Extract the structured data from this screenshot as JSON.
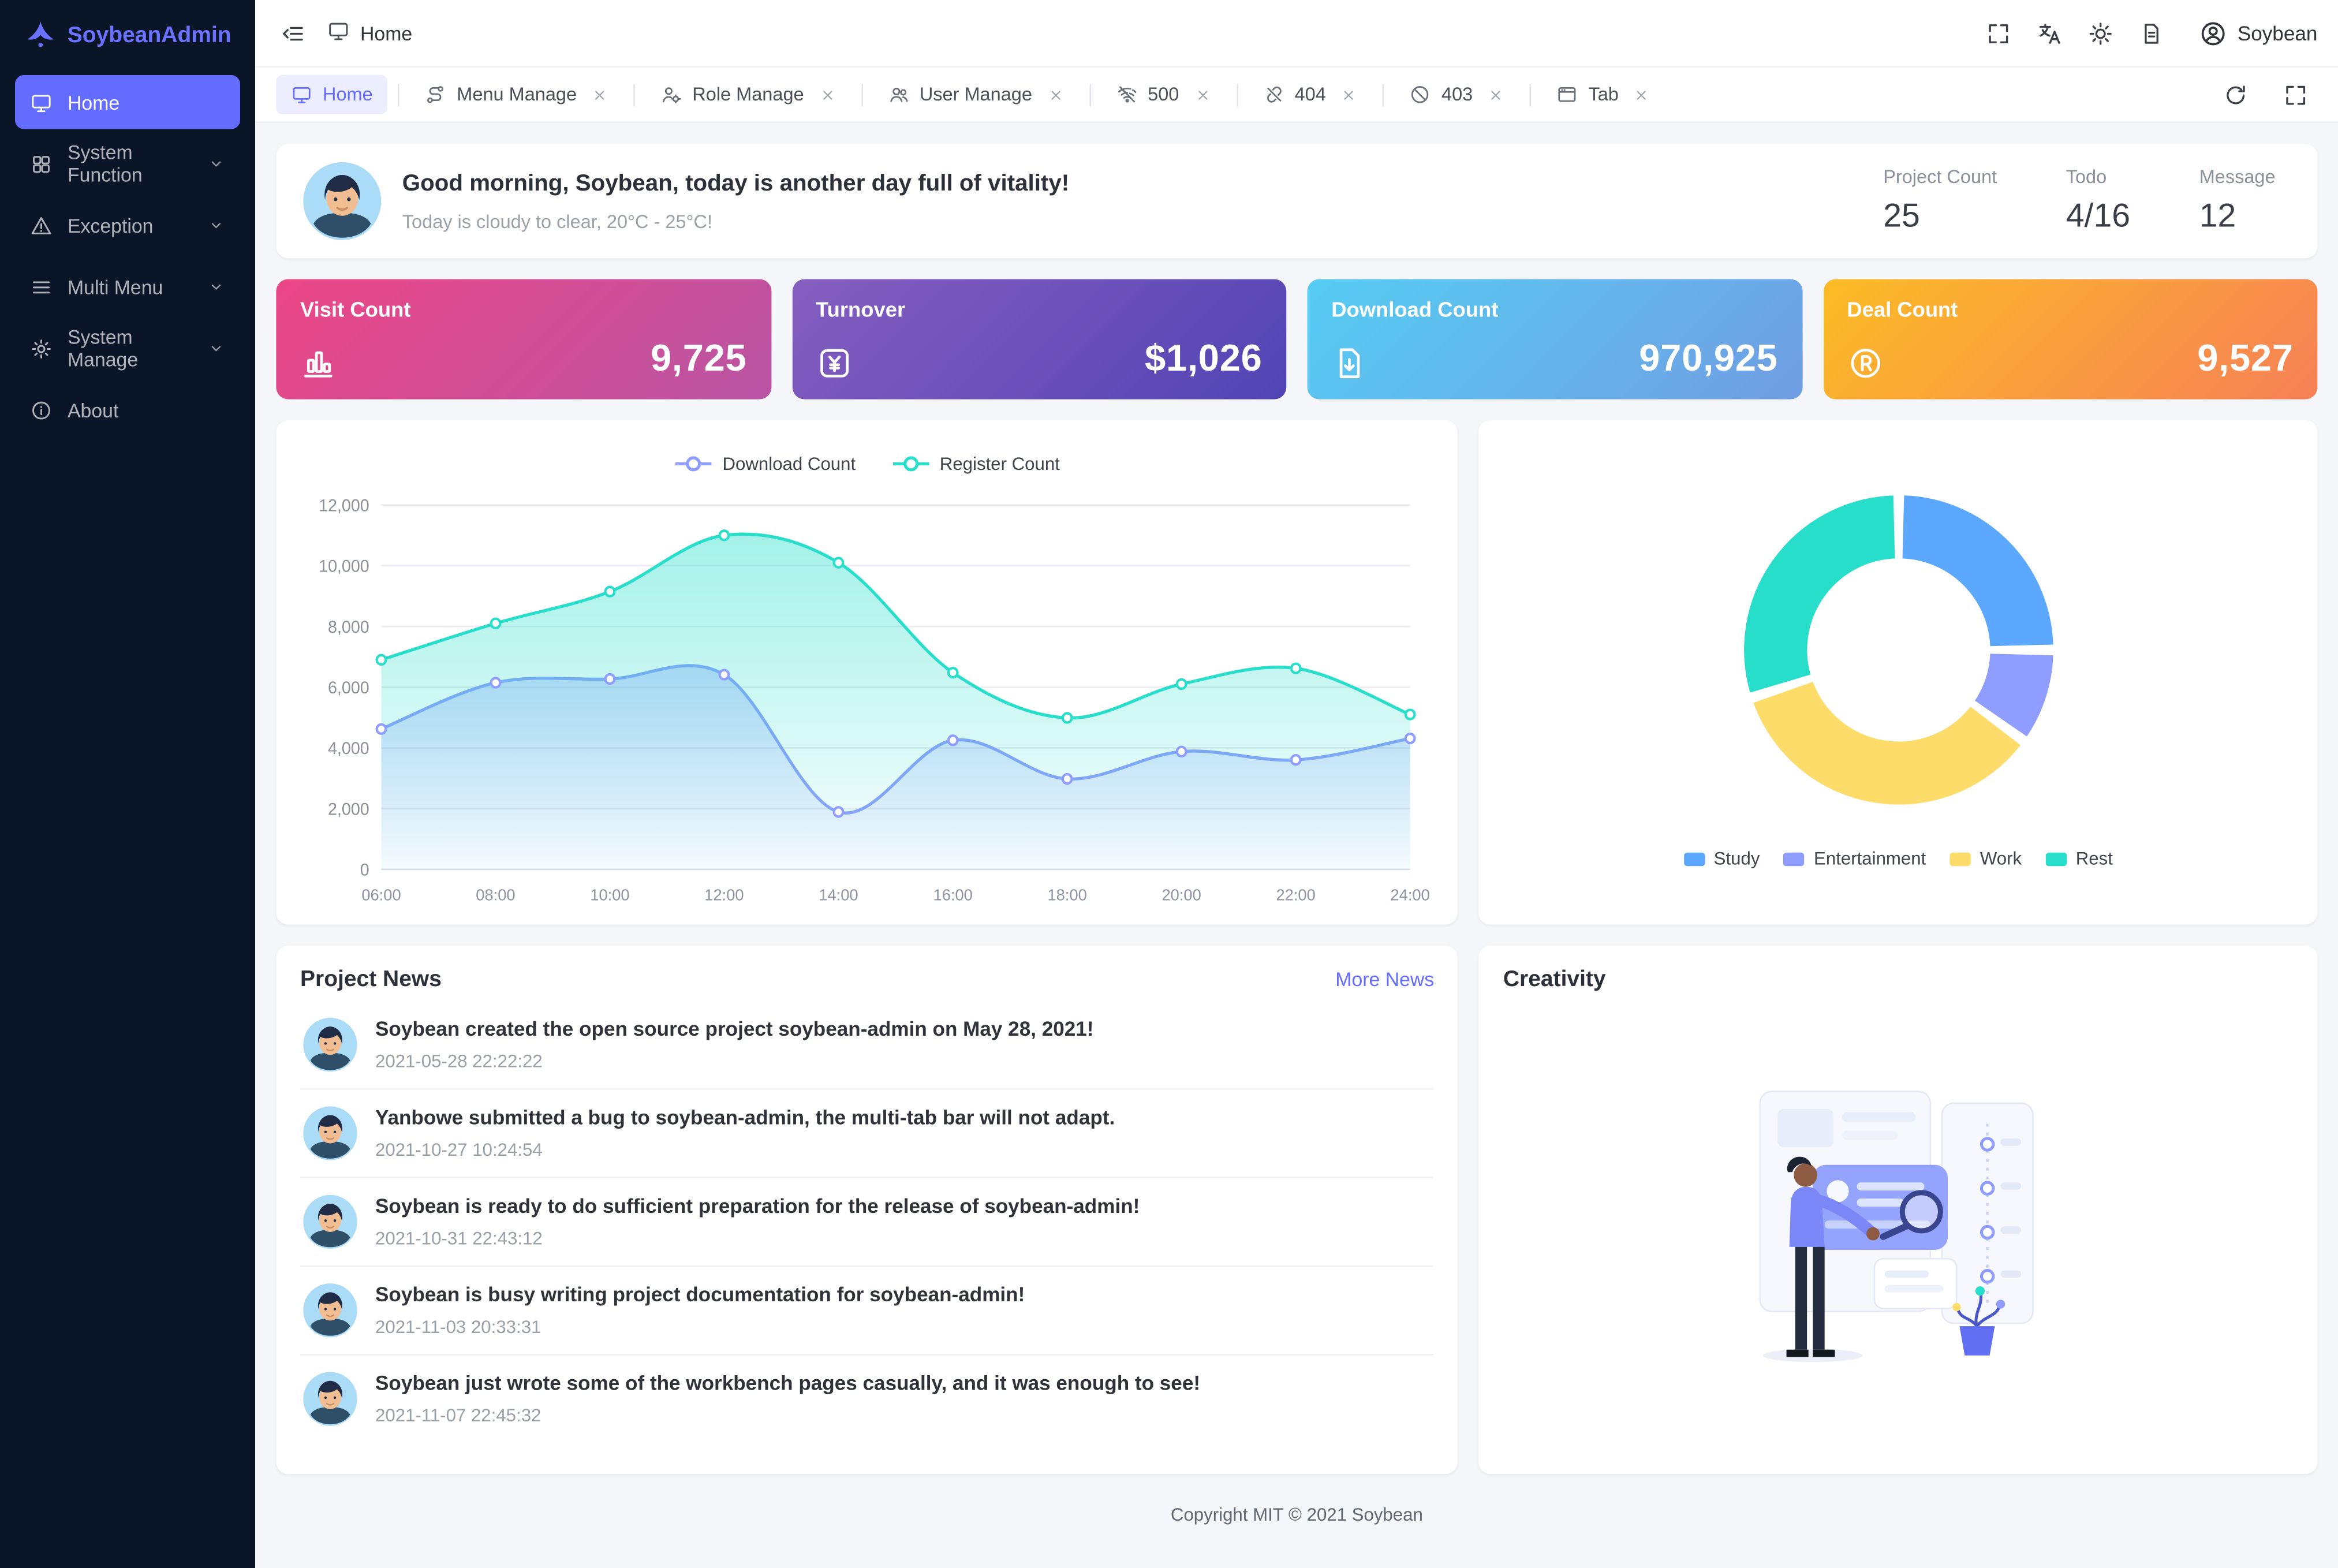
{
  "app": {
    "name": "SoybeanAdmin"
  },
  "colors": {
    "primary": "#646cff",
    "sidebar_bg": "#0b1528",
    "content_bg": "#f4f6fa"
  },
  "header": {
    "breadcrumb": {
      "icon": "monitor-icon",
      "label": "Home"
    },
    "actions": [
      {
        "name": "fullscreen",
        "icon": "fullscreen-icon"
      },
      {
        "name": "language",
        "icon": "translate-icon"
      },
      {
        "name": "theme-mode",
        "icon": "sun-icon"
      },
      {
        "name": "theme-config",
        "icon": "file-icon"
      }
    ],
    "user": {
      "icon": "user-circle-icon",
      "label": "Soybean"
    }
  },
  "sidebar": {
    "items": [
      {
        "label": "Home",
        "icon": "monitor-icon",
        "active": true,
        "expandable": false
      },
      {
        "label": "System Function",
        "icon": "grid-icon",
        "active": false,
        "expandable": true
      },
      {
        "label": "Exception",
        "icon": "alert-icon",
        "active": false,
        "expandable": true
      },
      {
        "label": "Multi Menu",
        "icon": "menu-icon",
        "active": false,
        "expandable": true
      },
      {
        "label": "System Manage",
        "icon": "settings-icon",
        "active": false,
        "expandable": true
      },
      {
        "label": "About",
        "icon": "info-icon",
        "active": false,
        "expandable": false
      }
    ]
  },
  "tabs": [
    {
      "label": "Home",
      "icon": "monitor-icon",
      "active": true,
      "closable": false
    },
    {
      "label": "Menu Manage",
      "icon": "route-icon",
      "active": false,
      "closable": true
    },
    {
      "label": "Role Manage",
      "icon": "user-gear-icon",
      "active": false,
      "closable": true
    },
    {
      "label": "User Manage",
      "icon": "users-icon",
      "active": false,
      "closable": true
    },
    {
      "label": "500",
      "icon": "wifi-off-icon",
      "active": false,
      "closable": true
    },
    {
      "label": "404",
      "icon": "link-off-icon",
      "active": false,
      "closable": true
    },
    {
      "label": "403",
      "icon": "forbid-icon",
      "active": false,
      "closable": true
    },
    {
      "label": "Tab",
      "icon": "window-icon",
      "active": false,
      "closable": true
    }
  ],
  "tabbar_actions": [
    {
      "name": "reload",
      "icon": "refresh-icon"
    },
    {
      "name": "fullscreen-content",
      "icon": "fullscreen-icon"
    }
  ],
  "greeting": {
    "title": "Good morning, Soybean, today is another day full of vitality!",
    "subtitle": "Today is cloudy to clear, 20°C - 25°C!",
    "stats": [
      {
        "label": "Project Count",
        "value": "25"
      },
      {
        "label": "Todo",
        "value": "4/16"
      },
      {
        "label": "Message",
        "value": "12"
      }
    ]
  },
  "stat_cards": [
    {
      "title": "Visit Count",
      "value": "9,725",
      "icon": "bar-chart-icon",
      "gradient": [
        "#ec4786",
        "#b955a4"
      ]
    },
    {
      "title": "Turnover",
      "value": "$1,026",
      "icon": "money-icon",
      "gradient": [
        "#865ec0",
        "#5144b4"
      ]
    },
    {
      "title": "Download Count",
      "value": "970,925",
      "icon": "download-doc-icon",
      "gradient": [
        "#56cdf3",
        "#719de3"
      ]
    },
    {
      "title": "Deal Count",
      "value": "9,527",
      "icon": "registered-icon",
      "gradient": [
        "#fcbc25",
        "#f68057"
      ]
    }
  ],
  "chart_data": [
    {
      "type": "area",
      "title": "",
      "x": [
        "06:00",
        "08:00",
        "10:00",
        "12:00",
        "14:00",
        "16:00",
        "18:00",
        "20:00",
        "22:00",
        "24:00"
      ],
      "series": [
        {
          "name": "Download Count",
          "color": "#8e9dff",
          "values": [
            4623,
            6145,
            6268,
            6411,
            1890,
            4251,
            2978,
            3880,
            3606,
            4311
          ]
        },
        {
          "name": "Register Count",
          "color": "#26deca",
          "values": [
            6900,
            8100,
            9150,
            11000,
            10100,
            6480,
            4990,
            6100,
            6620,
            5100
          ]
        }
      ],
      "xlabel": "",
      "ylabel": "",
      "ylim": [
        0,
        12000
      ],
      "yticks": [
        0,
        2000,
        4000,
        6000,
        8000,
        10000,
        12000
      ],
      "grid": true,
      "legend_position": "top"
    },
    {
      "type": "pie",
      "title": "",
      "labels": [
        "Study",
        "Entertainment",
        "Work",
        "Rest"
      ],
      "values": [
        25,
        10,
        35,
        30
      ],
      "colors": [
        "#5da8ff",
        "#8e9dff",
        "#fedc69",
        "#26deca"
      ],
      "inner_radius_ratio": 0.58,
      "legend_position": "bottom"
    }
  ],
  "news": {
    "title": "Project News",
    "more_label": "More News",
    "items": [
      {
        "text": "Soybean created the open source project soybean-admin on May 28, 2021!",
        "time": "2021-05-28 22:22:22"
      },
      {
        "text": "Yanbowe submitted a bug to soybean-admin, the multi-tab bar will not adapt.",
        "time": "2021-10-27 10:24:54"
      },
      {
        "text": "Soybean is ready to do sufficient preparation for the release of soybean-admin!",
        "time": "2021-10-31 22:43:12"
      },
      {
        "text": "Soybean is busy writing project documentation for soybean-admin!",
        "time": "2021-11-03 20:33:31"
      },
      {
        "text": "Soybean just wrote some of the workbench pages casually, and it was enough to see!",
        "time": "2021-11-07 22:45:32"
      }
    ]
  },
  "creativity": {
    "title": "Creativity"
  },
  "footer": {
    "text": "Copyright MIT © 2021 Soybean"
  }
}
